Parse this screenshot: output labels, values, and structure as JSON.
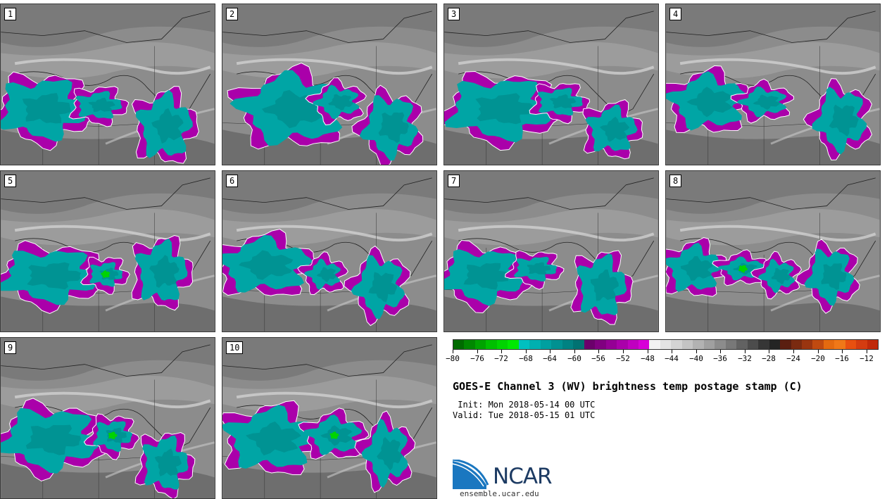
{
  "panels": [
    {
      "label": "1"
    },
    {
      "label": "2"
    },
    {
      "label": "3"
    },
    {
      "label": "4"
    },
    {
      "label": "5"
    },
    {
      "label": "6"
    },
    {
      "label": "7"
    },
    {
      "label": "8"
    },
    {
      "label": "9"
    },
    {
      "label": "10"
    }
  ],
  "colorbar": {
    "colors": [
      "#006b00",
      "#008800",
      "#00a300",
      "#00bf00",
      "#00d400",
      "#00e800",
      "#00c0c0",
      "#00b0b0",
      "#00a0a0",
      "#009191",
      "#008282",
      "#007272",
      "#6b006b",
      "#800080",
      "#950095",
      "#aa00aa",
      "#c000c0",
      "#d800d8",
      "#f2f2f2",
      "#e4e4e4",
      "#d4d4d4",
      "#c4c4c4",
      "#b2b2b2",
      "#a0a0a0",
      "#8c8c8c",
      "#787878",
      "#626262",
      "#4c4c4c",
      "#363636",
      "#242424",
      "#5a1e10",
      "#7a2a10",
      "#9a3510",
      "#c04a10",
      "#e46a10",
      "#f07818",
      "#e85010",
      "#d43c10",
      "#c02a0a"
    ],
    "tick_labels": [
      "-80",
      "-76",
      "-72",
      "-68",
      "-64",
      "-60",
      "-56",
      "-52",
      "-48",
      "-44",
      "-40",
      "-36",
      "-32",
      "-28",
      "-24",
      "-20",
      "-16",
      "-12"
    ]
  },
  "title": "GOES-E Channel 3 (WV) brightness temp postage stamp (C)",
  "init": " Init: Mon 2018-05-14 00 UTC",
  "valid": "Valid: Tue 2018-05-15 01 UTC",
  "logo": {
    "text": "NCAR",
    "site": "ensemble.ucar.edu"
  }
}
